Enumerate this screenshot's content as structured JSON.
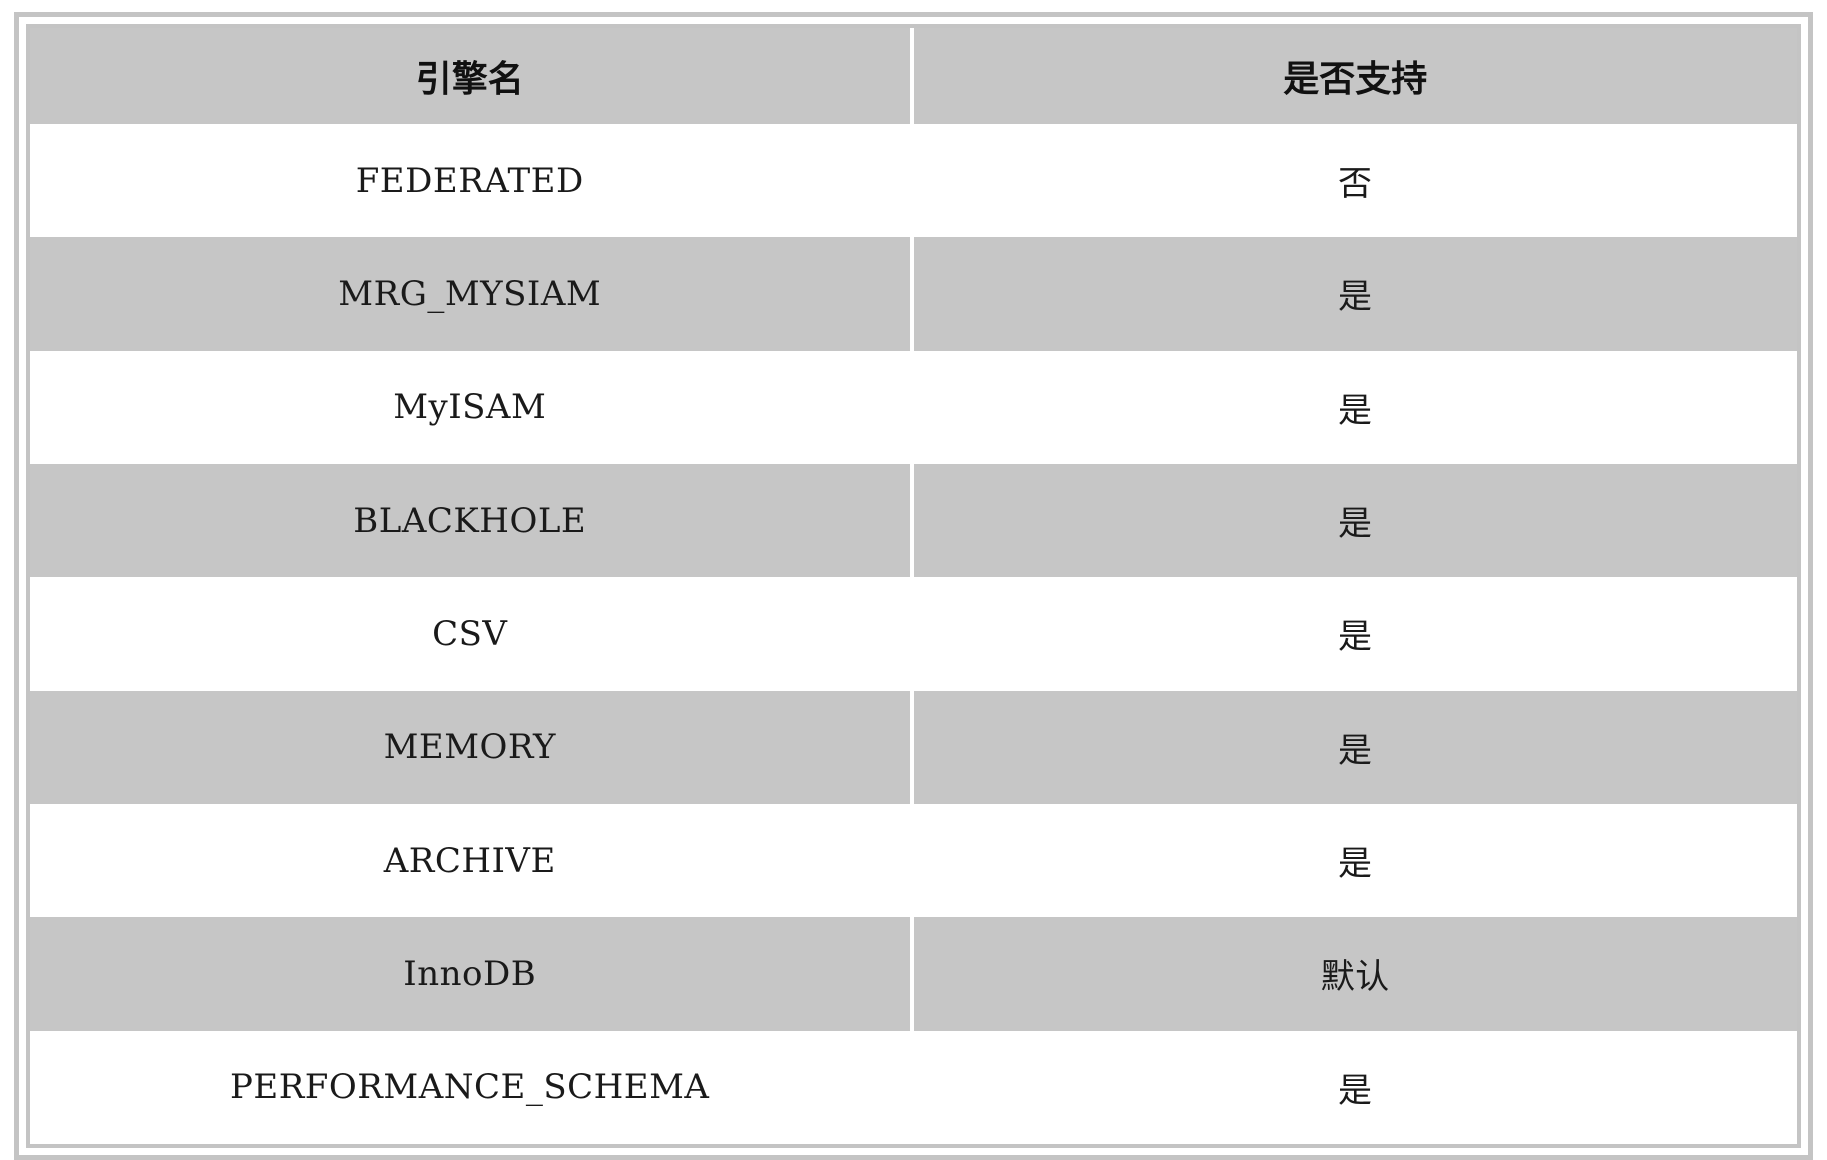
{
  "table": {
    "headers": [
      "引擎名",
      "是否支持"
    ],
    "rows": [
      [
        "FEDERATED",
        "否"
      ],
      [
        "MRG_MYSIAM",
        "是"
      ],
      [
        "MyISAM",
        "是"
      ],
      [
        "BLACKHOLE",
        "是"
      ],
      [
        "CSV",
        "是"
      ],
      [
        "MEMORY",
        "是"
      ],
      [
        "ARCHIVE",
        "是"
      ],
      [
        "InnoDB",
        "默认"
      ],
      [
        "PERFORMANCE_SCHEMA",
        "是"
      ]
    ]
  },
  "colors": {
    "header_bg": "#c6c6c6",
    "stripe_bg": "#c6c6c6",
    "row_bg": "#ffffff",
    "border": "#c4c4c4"
  }
}
